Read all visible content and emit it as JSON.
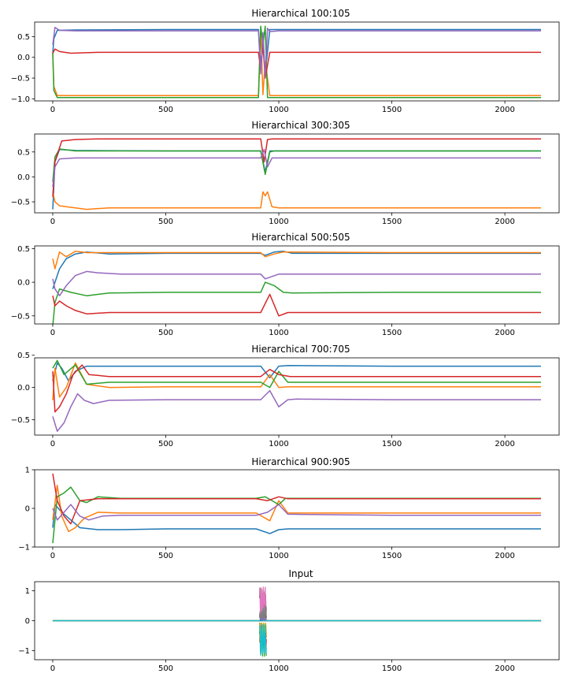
{
  "chart_data": [
    {
      "type": "line",
      "title": "Hierarchical 100:105",
      "xlim": [
        -80,
        2240
      ],
      "ylim": [
        -1.05,
        0.85
      ],
      "xticks": [
        0,
        500,
        1000,
        1500,
        2000
      ],
      "yticks": [
        -1.0,
        -0.5,
        0.0,
        0.5
      ],
      "ytick_labels": [
        "−1.0",
        "−0.5",
        "0.0",
        "0.5"
      ],
      "series": [
        {
          "color": "#1f77b4",
          "x": [
            0,
            5,
            20,
            100,
            500,
            910,
            920,
            930,
            940,
            960,
            1000,
            1500,
            2160
          ],
          "y": [
            0.1,
            0.45,
            0.65,
            0.66,
            0.67,
            0.67,
            -0.2,
            0.5,
            -0.4,
            0.67,
            0.67,
            0.67,
            0.67
          ]
        },
        {
          "color": "#ff7f0e",
          "x": [
            0,
            5,
            20,
            100,
            500,
            910,
            920,
            930,
            940,
            960,
            1000,
            1500,
            2160
          ],
          "y": [
            0.1,
            -0.7,
            -0.92,
            -0.92,
            -0.92,
            -0.92,
            0.7,
            -0.9,
            -0.1,
            -0.92,
            -0.92,
            -0.92,
            -0.92
          ]
        },
        {
          "color": "#2ca02c",
          "x": [
            0,
            5,
            20,
            100,
            500,
            910,
            920,
            930,
            940,
            950,
            960,
            1000,
            1500,
            2160
          ],
          "y": [
            0.1,
            -0.8,
            -0.97,
            -0.97,
            -0.97,
            -0.97,
            0.75,
            0.3,
            0.75,
            -0.97,
            -0.97,
            -0.97,
            -0.97,
            -0.97
          ]
        },
        {
          "color": "#d62728",
          "x": [
            0,
            10,
            30,
            80,
            200,
            500,
            910,
            920,
            930,
            940,
            960,
            1000,
            1500,
            2160
          ],
          "y": [
            0.1,
            0.2,
            0.14,
            0.1,
            0.12,
            0.12,
            0.12,
            -0.3,
            0.3,
            -0.5,
            0.12,
            0.12,
            0.12,
            0.12
          ]
        },
        {
          "color": "#9467bd",
          "x": [
            0,
            10,
            30,
            100,
            500,
            910,
            920,
            930,
            940,
            950,
            960,
            1000,
            1500,
            2160
          ],
          "y": [
            0.3,
            0.72,
            0.65,
            0.64,
            0.64,
            0.64,
            -0.4,
            0.6,
            -0.5,
            0.7,
            0.62,
            0.64,
            0.64,
            0.64
          ]
        }
      ]
    },
    {
      "type": "line",
      "title": "Hierarchical 300:305",
      "xlim": [
        -80,
        2240
      ],
      "ylim": [
        -0.72,
        0.86
      ],
      "xticks": [
        0,
        500,
        1000,
        1500,
        2000
      ],
      "yticks": [
        -0.5,
        0.0,
        0.5
      ],
      "ytick_labels": [
        "−0.5",
        "0.0",
        "0.5"
      ],
      "series": [
        {
          "color": "#1f77b4",
          "x": [
            0,
            10,
            30,
            100,
            500,
            920,
            940,
            960,
            1000,
            1500,
            2160
          ],
          "y": [
            -0.65,
            0.3,
            0.55,
            0.53,
            0.52,
            0.52,
            0.1,
            0.52,
            0.52,
            0.52,
            0.52
          ]
        },
        {
          "color": "#ff7f0e",
          "x": [
            0,
            10,
            30,
            100,
            150,
            250,
            500,
            920,
            930,
            940,
            950,
            970,
            1000,
            1500,
            2160
          ],
          "y": [
            -0.3,
            -0.5,
            -0.58,
            -0.62,
            -0.65,
            -0.62,
            -0.62,
            -0.62,
            -0.3,
            -0.38,
            -0.3,
            -0.6,
            -0.62,
            -0.62,
            -0.62
          ]
        },
        {
          "color": "#2ca02c",
          "x": [
            0,
            10,
            30,
            100,
            500,
            920,
            940,
            960,
            980,
            1000,
            1500,
            2160
          ],
          "y": [
            -0.1,
            0.4,
            0.56,
            0.52,
            0.52,
            0.52,
            0.05,
            0.5,
            0.52,
            0.52,
            0.52,
            0.52
          ]
        },
        {
          "color": "#d62728",
          "x": [
            0,
            10,
            40,
            100,
            200,
            500,
            920,
            935,
            950,
            970,
            1000,
            1500,
            2160
          ],
          "y": [
            -0.4,
            0.3,
            0.72,
            0.75,
            0.76,
            0.76,
            0.76,
            0.3,
            0.75,
            0.76,
            0.76,
            0.76,
            0.76
          ]
        },
        {
          "color": "#9467bd",
          "x": [
            0,
            10,
            30,
            100,
            500,
            920,
            935,
            950,
            970,
            1000,
            1500,
            2160
          ],
          "y": [
            -0.2,
            0.2,
            0.36,
            0.38,
            0.38,
            0.38,
            0.55,
            0.2,
            0.38,
            0.38,
            0.38,
            0.38
          ]
        }
      ]
    },
    {
      "type": "line",
      "title": "Hierarchical 500:505",
      "xlim": [
        -80,
        2240
      ],
      "ylim": [
        -0.62,
        0.54
      ],
      "xticks": [
        0,
        500,
        1000,
        1500,
        2000
      ],
      "yticks": [
        -0.5,
        0.0,
        0.5
      ],
      "ytick_labels": [
        "−0.5",
        "0.0",
        "0.5"
      ],
      "series": [
        {
          "color": "#1f77b4",
          "x": [
            0,
            10,
            30,
            60,
            100,
            150,
            250,
            500,
            920,
            940,
            980,
            1020,
            1060,
            1500,
            2160
          ],
          "y": [
            -0.1,
            0.0,
            0.2,
            0.35,
            0.42,
            0.45,
            0.42,
            0.43,
            0.43,
            0.4,
            0.45,
            0.46,
            0.43,
            0.43,
            0.43
          ]
        },
        {
          "color": "#ff7f0e",
          "x": [
            0,
            10,
            30,
            60,
            100,
            150,
            250,
            500,
            920,
            940,
            980,
            1020,
            1500,
            2160
          ],
          "y": [
            0.35,
            0.2,
            0.45,
            0.38,
            0.46,
            0.44,
            0.44,
            0.44,
            0.44,
            0.38,
            0.42,
            0.45,
            0.44,
            0.44
          ]
        },
        {
          "color": "#2ca02c",
          "x": [
            0,
            10,
            30,
            80,
            150,
            250,
            500,
            920,
            940,
            980,
            1020,
            1060,
            1500,
            2160
          ],
          "y": [
            -0.65,
            -0.3,
            -0.1,
            -0.15,
            -0.2,
            -0.16,
            -0.15,
            -0.15,
            0.0,
            -0.05,
            -0.15,
            -0.16,
            -0.15,
            -0.15
          ]
        },
        {
          "color": "#d62728",
          "x": [
            0,
            10,
            30,
            60,
            100,
            150,
            250,
            500,
            920,
            960,
            1000,
            1040,
            1500,
            2160
          ],
          "y": [
            -0.2,
            -0.35,
            -0.28,
            -0.35,
            -0.42,
            -0.47,
            -0.45,
            -0.45,
            -0.45,
            -0.18,
            -0.5,
            -0.45,
            -0.45,
            -0.45
          ]
        },
        {
          "color": "#9467bd",
          "x": [
            0,
            10,
            30,
            60,
            100,
            150,
            200,
            300,
            500,
            920,
            940,
            1000,
            1040,
            1500,
            2160
          ],
          "y": [
            0.05,
            -0.1,
            -0.2,
            -0.05,
            0.1,
            0.16,
            0.14,
            0.12,
            0.12,
            0.12,
            0.05,
            0.12,
            0.12,
            0.12,
            0.12
          ]
        }
      ]
    },
    {
      "type": "line",
      "title": "Hierarchical 700:705",
      "xlim": [
        -80,
        2240
      ],
      "ylim": [
        -0.74,
        0.46
      ],
      "xticks": [
        0,
        500,
        1000,
        1500,
        2000
      ],
      "yticks": [
        -0.5,
        0.0,
        0.5
      ],
      "ytick_labels": [
        "−0.5",
        "0.0",
        "0.5"
      ],
      "series": [
        {
          "color": "#1f77b4",
          "x": [
            0,
            20,
            40,
            70,
            100,
            150,
            250,
            500,
            920,
            960,
            1000,
            1040,
            1500,
            2160
          ],
          "y": [
            0.1,
            0.38,
            0.3,
            0.1,
            0.25,
            0.33,
            0.33,
            0.33,
            0.33,
            0.15,
            0.33,
            0.34,
            0.33,
            0.33
          ]
        },
        {
          "color": "#ff7f0e",
          "x": [
            0,
            10,
            30,
            60,
            100,
            150,
            250,
            500,
            920,
            960,
            1000,
            1040,
            1500,
            2160
          ],
          "y": [
            -0.2,
            0.3,
            -0.15,
            0.0,
            0.38,
            0.05,
            0.0,
            0.01,
            0.01,
            0.2,
            0.0,
            0.01,
            0.01,
            0.01
          ]
        },
        {
          "color": "#2ca02c",
          "x": [
            0,
            20,
            50,
            100,
            150,
            250,
            500,
            920,
            960,
            1000,
            1040,
            1500,
            2160
          ],
          "y": [
            0.3,
            0.42,
            0.2,
            0.35,
            0.05,
            0.08,
            0.08,
            0.08,
            0.0,
            0.25,
            0.08,
            0.08,
            0.08
          ]
        },
        {
          "color": "#d62728",
          "x": [
            0,
            10,
            30,
            60,
            90,
            130,
            160,
            250,
            500,
            920,
            960,
            1000,
            1050,
            1500,
            2160
          ],
          "y": [
            0.25,
            -0.38,
            -0.3,
            -0.1,
            0.2,
            0.35,
            0.2,
            0.17,
            0.17,
            0.17,
            0.28,
            0.2,
            0.17,
            0.17,
            0.17
          ]
        },
        {
          "color": "#9467bd",
          "x": [
            0,
            20,
            50,
            80,
            110,
            140,
            180,
            250,
            500,
            920,
            960,
            1000,
            1040,
            1080,
            1500,
            2160
          ],
          "y": [
            -0.45,
            -0.68,
            -0.55,
            -0.3,
            -0.1,
            -0.2,
            -0.25,
            -0.2,
            -0.19,
            -0.19,
            -0.05,
            -0.3,
            -0.19,
            -0.18,
            -0.19,
            -0.19
          ]
        }
      ]
    },
    {
      "type": "line",
      "title": "Hierarchical 900:905",
      "xlim": [
        -80,
        2240
      ],
      "ylim": [
        -1.0,
        1.0
      ],
      "xticks": [
        0,
        500,
        1000,
        1500,
        2000
      ],
      "yticks": [
        -1,
        0,
        1
      ],
      "ytick_labels": [
        "−1",
        "0",
        "1"
      ],
      "series": [
        {
          "color": "#1f77b4",
          "x": [
            0,
            10,
            40,
            80,
            120,
            200,
            300,
            500,
            900,
            960,
            1000,
            1040,
            1500,
            2160
          ],
          "y": [
            -0.5,
            0.1,
            -0.1,
            -0.3,
            -0.5,
            -0.55,
            -0.55,
            -0.53,
            -0.53,
            -0.65,
            -0.55,
            -0.53,
            -0.53,
            -0.53
          ]
        },
        {
          "color": "#ff7f0e",
          "x": [
            0,
            20,
            40,
            70,
            100,
            140,
            200,
            300,
            500,
            900,
            960,
            1000,
            1040,
            1500,
            2160
          ],
          "y": [
            -0.3,
            0.6,
            -0.2,
            -0.6,
            -0.5,
            -0.25,
            -0.1,
            -0.12,
            -0.12,
            -0.12,
            -0.32,
            0.2,
            -0.12,
            -0.12,
            -0.12
          ]
        },
        {
          "color": "#2ca02c",
          "x": [
            0,
            20,
            50,
            80,
            120,
            150,
            200,
            300,
            500,
            900,
            940,
            1000,
            1030,
            1500,
            2160
          ],
          "y": [
            -0.9,
            0.3,
            0.4,
            0.55,
            0.2,
            0.15,
            0.3,
            0.26,
            0.26,
            0.26,
            0.3,
            0.1,
            0.26,
            0.26,
            0.26
          ]
        },
        {
          "color": "#d62728",
          "x": [
            0,
            20,
            50,
            80,
            120,
            200,
            300,
            500,
            900,
            950,
            1000,
            1040,
            1500,
            2160
          ],
          "y": [
            0.9,
            0.2,
            -0.2,
            -0.4,
            0.2,
            0.25,
            0.25,
            0.25,
            0.25,
            0.2,
            0.3,
            0.25,
            0.25,
            0.25
          ]
        },
        {
          "color": "#9467bd",
          "x": [
            0,
            20,
            50,
            80,
            120,
            160,
            220,
            300,
            500,
            900,
            950,
            1000,
            1040,
            1500,
            2160
          ],
          "y": [
            0.0,
            -0.3,
            -0.1,
            0.1,
            -0.2,
            -0.3,
            -0.2,
            -0.18,
            -0.18,
            -0.18,
            -0.1,
            0.1,
            -0.15,
            -0.18,
            -0.18
          ]
        }
      ]
    },
    {
      "type": "line",
      "title": "Input",
      "xlim": [
        -80,
        2240
      ],
      "ylim": [
        -1.3,
        1.3
      ],
      "xticks": [
        0,
        500,
        1000,
        1500,
        2000
      ],
      "yticks": [
        -1,
        0,
        1
      ],
      "ytick_labels": [
        "−1",
        "0",
        "1"
      ],
      "baseline": {
        "x": [
          0,
          2160
        ],
        "y": 0.0
      },
      "burst": {
        "x_start": 915,
        "x_end": 945,
        "amplitude": 1.2
      },
      "colors": [
        "#1f77b4",
        "#ff7f0e",
        "#2ca02c",
        "#d62728",
        "#9467bd",
        "#8c564b",
        "#e377c2",
        "#7f7f7f",
        "#bcbd22",
        "#17becf"
      ]
    }
  ]
}
